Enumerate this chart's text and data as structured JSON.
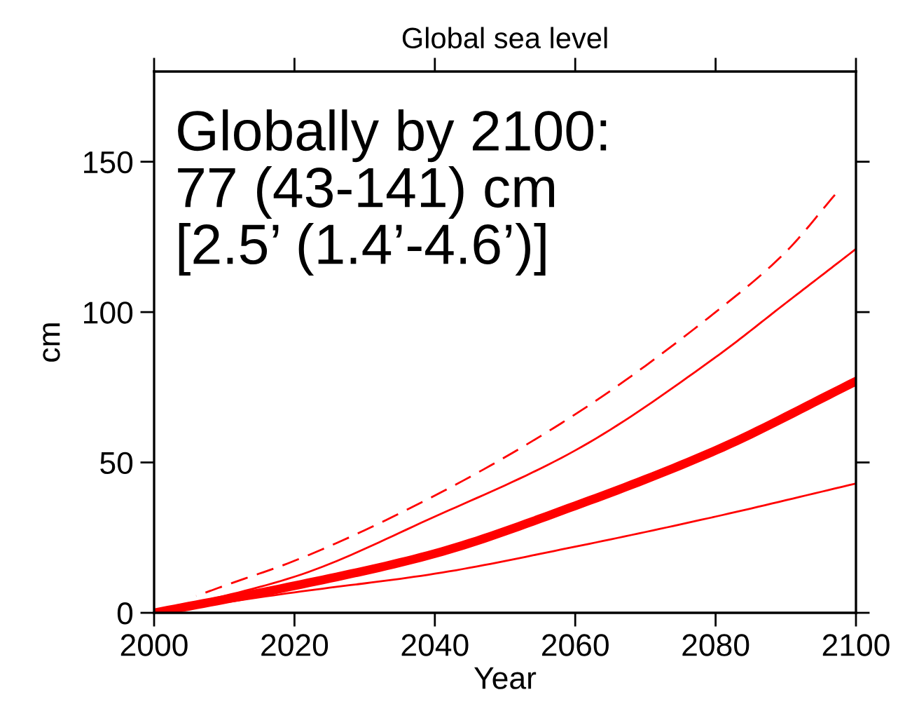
{
  "chart_data": {
    "type": "line",
    "title": "Global sea level",
    "xlabel": "Year",
    "ylabel": "cm",
    "xlim": [
      2000,
      2100
    ],
    "ylim": [
      0,
      180
    ],
    "xticks": [
      2000,
      2020,
      2040,
      2060,
      2080,
      2100
    ],
    "yticks": [
      0,
      50,
      100,
      150
    ],
    "grid": false,
    "legend": false,
    "marker": "none",
    "annotations": [
      "Globally by 2100:\n77 (43-141) cm\n[2.5’ (1.4’-4.6’)]"
    ],
    "series": [
      {
        "color": "#ff0000",
        "line_style": "solid",
        "x": [
          2000,
          2020,
          2040,
          2060,
          2080,
          2100
        ],
        "values": [
          0,
          9,
          19.7,
          35.6,
          54,
          77
        ]
      },
      {
        "color": "#ff0000",
        "line_style": "solid",
        "x": [
          2000,
          2020,
          2040,
          2060,
          2080,
          2090,
          2100
        ],
        "values": [
          0,
          12,
          32,
          54,
          85,
          103,
          121
        ]
      },
      {
        "color": "#ff0000",
        "line_style": "solid",
        "x": [
          2000,
          2020,
          2040,
          2060,
          2080,
          2100
        ],
        "values": [
          0,
          6.8,
          13,
          22,
          32,
          43
        ]
      },
      {
        "color": "#ff0000",
        "line_style": "dashed",
        "x": [
          2006,
          2010,
          2020,
          2040,
          2060,
          2080,
          2090,
          2097
        ],
        "values": [
          5.6,
          9,
          17.3,
          39,
          66,
          100,
          120,
          139
        ]
      }
    ]
  }
}
